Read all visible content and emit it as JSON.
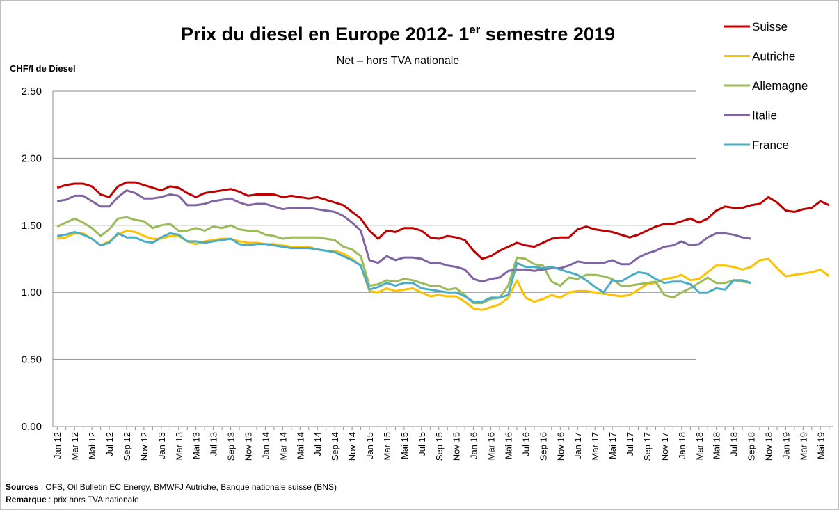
{
  "chart_data": {
    "type": "line",
    "title": [
      "Prix du diesel en Europe 2012- 1",
      "er",
      " semestre 2019"
    ],
    "subtitle": "Net – hors TVA nationale",
    "ylabel": "CHF/l de Diesel",
    "ylim": [
      0,
      2.5
    ],
    "yticks": [
      {
        "value": 0,
        "label": "0.00"
      },
      {
        "value": 0.5,
        "label": "0.50"
      },
      {
        "value": 1,
        "label": "1.00"
      },
      {
        "value": 1.5,
        "label": "1.50"
      },
      {
        "value": 2,
        "label": "2.00"
      },
      {
        "value": 2.5,
        "label": "2.50"
      }
    ],
    "grid": true,
    "legend": "right",
    "categories": [
      "Jan 12",
      null,
      "Mar 12",
      null,
      "Mai 12",
      null,
      "Jul 12",
      null,
      "Sep 12",
      null,
      "Nov 12",
      null,
      "Jan 13",
      null,
      "Mar 13",
      null,
      "Mai 13",
      null,
      "Jul 13",
      null,
      "Sep 13",
      null,
      "Nov 13",
      null,
      "Jan 14",
      null,
      "Mar 14",
      null,
      "Mai 14",
      null,
      "Jul 14",
      null,
      "Sep 14",
      null,
      "Nov 14",
      null,
      "Jan 15",
      null,
      "Mar 15",
      null,
      "Mai 15",
      null,
      "Jul 15",
      null,
      "Sep 15",
      null,
      "Nov 15",
      null,
      "Jan 16",
      null,
      "Mar 16",
      null,
      "Mai 16",
      null,
      "Jul 16",
      null,
      "Sep 16",
      null,
      "Nov 16",
      null,
      "Jan 17",
      null,
      "Mar 17",
      null,
      "Mai 17",
      null,
      "Jul 17",
      null,
      "Sep 17",
      null,
      "Nov 17",
      null,
      "Jan 18",
      null,
      "Mar 18",
      null,
      "Mai 18",
      null,
      "Jul 18",
      null,
      "Sep 18",
      null,
      "Nov 18",
      null,
      "Jan 19",
      null,
      "Mar 19",
      null,
      "Mai 19",
      null
    ],
    "series": [
      {
        "name": "Suisse",
        "color": "#c00000",
        "values": [
          1.78,
          1.8,
          1.81,
          1.81,
          1.79,
          1.73,
          1.71,
          1.79,
          1.82,
          1.82,
          1.8,
          1.78,
          1.76,
          1.79,
          1.78,
          1.74,
          1.71,
          1.74,
          1.75,
          1.76,
          1.77,
          1.75,
          1.72,
          1.73,
          1.73,
          1.73,
          1.71,
          1.72,
          1.71,
          1.7,
          1.71,
          1.69,
          1.67,
          1.65,
          1.6,
          1.55,
          1.46,
          1.4,
          1.46,
          1.45,
          1.48,
          1.48,
          1.46,
          1.41,
          1.4,
          1.42,
          1.41,
          1.39,
          1.31,
          1.25,
          1.27,
          1.31,
          1.34,
          1.37,
          1.35,
          1.34,
          1.37,
          1.4,
          1.41,
          1.41,
          1.47,
          1.49,
          1.47,
          1.46,
          1.45,
          1.43,
          1.41,
          1.43,
          1.46,
          1.49,
          1.51,
          1.51,
          1.53,
          1.55,
          1.52,
          1.55,
          1.61,
          1.64,
          1.63,
          1.63,
          1.65,
          1.66,
          1.71,
          1.67,
          1.61,
          1.6,
          1.62,
          1.63,
          1.68,
          1.65
        ]
      },
      {
        "name": "Autriche",
        "color": "#ffc000",
        "values": [
          1.4,
          1.41,
          1.44,
          1.44,
          1.4,
          1.35,
          1.38,
          1.43,
          1.46,
          1.45,
          1.42,
          1.4,
          1.4,
          1.42,
          1.42,
          1.38,
          1.36,
          1.38,
          1.39,
          1.4,
          1.4,
          1.38,
          1.37,
          1.37,
          1.36,
          1.36,
          1.35,
          1.34,
          1.34,
          1.34,
          1.32,
          1.31,
          1.31,
          1.29,
          1.25,
          1.2,
          1.01,
          1.0,
          1.03,
          1.01,
          1.02,
          1.03,
          1.0,
          0.97,
          0.98,
          0.97,
          0.97,
          0.93,
          0.88,
          0.87,
          0.89,
          0.91,
          0.96,
          1.09,
          0.96,
          0.93,
          0.95,
          0.98,
          0.96,
          1.0,
          1.01,
          1.01,
          1.0,
          0.99,
          0.98,
          0.97,
          0.98,
          1.02,
          1.06,
          1.07,
          1.1,
          1.11,
          1.13,
          1.09,
          1.1,
          1.15,
          1.2,
          1.2,
          1.19,
          1.17,
          1.19,
          1.24,
          1.25,
          1.18,
          1.12,
          1.13,
          1.14,
          1.15,
          1.17,
          1.12
        ]
      },
      {
        "name": "Allemagne",
        "color": "#9bbb59",
        "values": [
          1.49,
          1.52,
          1.55,
          1.52,
          1.48,
          1.42,
          1.47,
          1.55,
          1.56,
          1.54,
          1.53,
          1.48,
          1.5,
          1.51,
          1.46,
          1.46,
          1.48,
          1.46,
          1.49,
          1.48,
          1.5,
          1.47,
          1.46,
          1.46,
          1.43,
          1.42,
          1.4,
          1.41,
          1.41,
          1.41,
          1.41,
          1.4,
          1.39,
          1.34,
          1.32,
          1.27,
          1.05,
          1.06,
          1.09,
          1.08,
          1.1,
          1.09,
          1.07,
          1.05,
          1.05,
          1.02,
          1.03,
          0.98,
          0.92,
          0.92,
          0.95,
          0.96,
          1.05,
          1.26,
          1.25,
          1.21,
          1.2,
          1.08,
          1.05,
          1.11,
          1.1,
          1.13,
          1.13,
          1.12,
          1.1,
          1.05,
          1.05,
          1.06,
          1.07,
          1.08,
          0.98,
          0.96,
          1.0,
          1.03,
          1.07,
          1.11,
          1.07,
          1.07,
          1.09,
          1.08,
          1.07,
          null,
          null,
          null,
          null,
          null,
          null,
          null,
          null,
          null
        ]
      },
      {
        "name": "Italie",
        "color": "#8064a2",
        "values": [
          1.68,
          1.69,
          1.72,
          1.72,
          1.68,
          1.64,
          1.64,
          1.71,
          1.76,
          1.74,
          1.7,
          1.7,
          1.71,
          1.73,
          1.72,
          1.65,
          1.65,
          1.66,
          1.68,
          1.69,
          1.7,
          1.67,
          1.65,
          1.66,
          1.66,
          1.64,
          1.62,
          1.63,
          1.63,
          1.63,
          1.62,
          1.61,
          1.6,
          1.57,
          1.52,
          1.46,
          1.24,
          1.22,
          1.27,
          1.24,
          1.26,
          1.26,
          1.25,
          1.22,
          1.22,
          1.2,
          1.19,
          1.17,
          1.1,
          1.08,
          1.1,
          1.11,
          1.16,
          1.17,
          1.17,
          1.16,
          1.17,
          1.18,
          1.18,
          1.2,
          1.23,
          1.22,
          1.22,
          1.22,
          1.24,
          1.21,
          1.21,
          1.26,
          1.29,
          1.31,
          1.34,
          1.35,
          1.38,
          1.35,
          1.36,
          1.41,
          1.44,
          1.44,
          1.43,
          1.41,
          1.4,
          null,
          null,
          null,
          null,
          null,
          null,
          null,
          null,
          null
        ]
      },
      {
        "name": "France",
        "color": "#4bacc6",
        "values": [
          1.42,
          1.43,
          1.45,
          1.43,
          1.4,
          1.35,
          1.37,
          1.44,
          1.41,
          1.41,
          1.38,
          1.37,
          1.41,
          1.44,
          1.43,
          1.38,
          1.38,
          1.37,
          1.38,
          1.39,
          1.4,
          1.36,
          1.35,
          1.36,
          1.36,
          1.35,
          1.34,
          1.33,
          1.33,
          1.33,
          1.32,
          1.31,
          1.3,
          1.27,
          1.24,
          1.2,
          1.02,
          1.04,
          1.07,
          1.05,
          1.07,
          1.07,
          1.03,
          1.02,
          1.01,
          1.0,
          1.0,
          0.97,
          0.93,
          0.93,
          0.96,
          0.96,
          0.98,
          1.22,
          1.19,
          1.19,
          1.18,
          1.19,
          1.17,
          1.15,
          1.13,
          1.09,
          1.04,
          1.0,
          1.09,
          1.08,
          1.12,
          1.15,
          1.14,
          1.1,
          1.07,
          1.08,
          1.08,
          1.06,
          1.0,
          1.0,
          1.03,
          1.02,
          1.09,
          1.09,
          1.07,
          null,
          null,
          null,
          null,
          null,
          null,
          null,
          null,
          null
        ]
      }
    ],
    "sources": {
      "label": "Sources",
      "text": " : OFS, Oil Bulletin EC Energy, BMWFJ Autriche, Banque nationale suisse (BNS)"
    },
    "remark": {
      "label": "Remarque",
      "text": " : prix hors TVA nationale"
    }
  }
}
